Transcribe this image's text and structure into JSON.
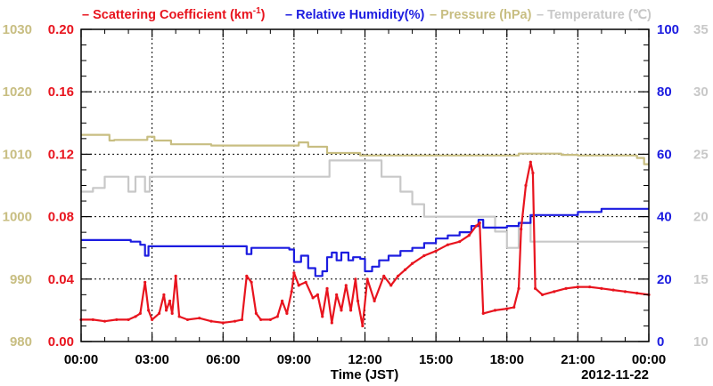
{
  "chart_data": {
    "type": "line",
    "legend": [
      {
        "key": "scattering",
        "label": "Scattering Coefficient (km",
        "sup": "-1",
        "suffix": ")",
        "color": "#e8141e"
      },
      {
        "key": "humidity",
        "label": "Relative Humidity(%)",
        "color": "#1c1ce0"
      },
      {
        "key": "pressure",
        "label": "Pressure (hPa)",
        "color": "#c8be82"
      },
      {
        "key": "temperature",
        "label": "Temperature (℃)",
        "color": "#c8c8c8"
      }
    ],
    "xlabel": "Time (JST)",
    "date_label": "2012-11-22",
    "x_ticks": [
      "00:00",
      "03:00",
      "06:00",
      "09:00",
      "12:00",
      "15:00",
      "18:00",
      "21:00",
      "00:00"
    ],
    "xlim_hours": [
      0,
      24
    ],
    "axes": {
      "scattering": {
        "range": [
          0,
          0.2
        ],
        "ticks": [
          "0.00",
          "0.04",
          "0.08",
          "0.12",
          "0.16",
          "0.20"
        ],
        "color": "#e8141e"
      },
      "pressure": {
        "range": [
          980,
          1030
        ],
        "ticks": [
          "980",
          "990",
          "1000",
          "1010",
          "1020",
          "1030"
        ],
        "color": "#c8be82"
      },
      "humidity": {
        "range": [
          0,
          100
        ],
        "ticks": [
          "0",
          "20",
          "40",
          "60",
          "80",
          "100"
        ],
        "color": "#1c1ce0"
      },
      "temperature": {
        "range": [
          10,
          35
        ],
        "ticks": [
          "10",
          "15",
          "20",
          "25",
          "30",
          "35"
        ],
        "color": "#c8c8c8"
      }
    },
    "grid": true,
    "series": [
      {
        "name": "Scattering Coefficient (km-1)",
        "axis": "scattering",
        "color": "#e8141e",
        "step": false,
        "markers": true,
        "points": [
          [
            0.0,
            0.014
          ],
          [
            0.5,
            0.014
          ],
          [
            1.0,
            0.013
          ],
          [
            1.5,
            0.014
          ],
          [
            2.0,
            0.014
          ],
          [
            2.3,
            0.016
          ],
          [
            2.5,
            0.018
          ],
          [
            2.7,
            0.038
          ],
          [
            2.85,
            0.02
          ],
          [
            3.0,
            0.014
          ],
          [
            3.3,
            0.018
          ],
          [
            3.5,
            0.03
          ],
          [
            3.6,
            0.02
          ],
          [
            3.75,
            0.026
          ],
          [
            3.85,
            0.018
          ],
          [
            4.0,
            0.042
          ],
          [
            4.15,
            0.016
          ],
          [
            4.5,
            0.014
          ],
          [
            5.0,
            0.015
          ],
          [
            5.5,
            0.013
          ],
          [
            6.0,
            0.012
          ],
          [
            6.5,
            0.013
          ],
          [
            6.8,
            0.014
          ],
          [
            7.0,
            0.042
          ],
          [
            7.2,
            0.038
          ],
          [
            7.4,
            0.018
          ],
          [
            7.6,
            0.014
          ],
          [
            8.0,
            0.014
          ],
          [
            8.3,
            0.016
          ],
          [
            8.5,
            0.026
          ],
          [
            8.7,
            0.018
          ],
          [
            8.9,
            0.032
          ],
          [
            9.0,
            0.044
          ],
          [
            9.2,
            0.036
          ],
          [
            9.5,
            0.038
          ],
          [
            9.8,
            0.028
          ],
          [
            10.0,
            0.03
          ],
          [
            10.2,
            0.016
          ],
          [
            10.4,
            0.034
          ],
          [
            10.6,
            0.012
          ],
          [
            10.8,
            0.03
          ],
          [
            11.0,
            0.02
          ],
          [
            11.2,
            0.036
          ],
          [
            11.4,
            0.02
          ],
          [
            11.6,
            0.04
          ],
          [
            11.7,
            0.026
          ],
          [
            11.9,
            0.01
          ],
          [
            12.1,
            0.04
          ],
          [
            12.4,
            0.026
          ],
          [
            12.8,
            0.042
          ],
          [
            13.1,
            0.036
          ],
          [
            13.4,
            0.042
          ],
          [
            13.7,
            0.046
          ],
          [
            14.0,
            0.05
          ],
          [
            14.5,
            0.055
          ],
          [
            15.0,
            0.058
          ],
          [
            15.5,
            0.062
          ],
          [
            16.0,
            0.064
          ],
          [
            16.4,
            0.068
          ],
          [
            16.7,
            0.074
          ],
          [
            16.85,
            0.076
          ],
          [
            17.0,
            0.018
          ],
          [
            17.5,
            0.02
          ],
          [
            18.0,
            0.021
          ],
          [
            18.3,
            0.022
          ],
          [
            18.5,
            0.034
          ],
          [
            18.6,
            0.072
          ],
          [
            18.8,
            0.1
          ],
          [
            19.0,
            0.115
          ],
          [
            19.1,
            0.108
          ],
          [
            19.2,
            0.034
          ],
          [
            19.5,
            0.03
          ],
          [
            20.0,
            0.032
          ],
          [
            20.5,
            0.034
          ],
          [
            21.0,
            0.035
          ],
          [
            21.5,
            0.035
          ],
          [
            22.0,
            0.034
          ],
          [
            22.5,
            0.033
          ],
          [
            23.0,
            0.032
          ],
          [
            23.5,
            0.031
          ],
          [
            24.0,
            0.03
          ]
        ]
      },
      {
        "name": "Relative Humidity(%)",
        "axis": "humidity",
        "color": "#1c1ce0",
        "step": true,
        "markers": false,
        "points": [
          [
            0.0,
            32.5
          ],
          [
            2.1,
            32.0
          ],
          [
            2.5,
            31.0
          ],
          [
            2.7,
            27.5
          ],
          [
            2.85,
            30.5
          ],
          [
            4.0,
            30.5
          ],
          [
            6.0,
            30.5
          ],
          [
            6.8,
            30.5
          ],
          [
            7.0,
            28.0
          ],
          [
            7.2,
            30.0
          ],
          [
            8.0,
            30.0
          ],
          [
            8.8,
            29.5
          ],
          [
            9.0,
            25.5
          ],
          [
            9.3,
            27.5
          ],
          [
            9.6,
            23.5
          ],
          [
            9.9,
            21.0
          ],
          [
            10.2,
            22.5
          ],
          [
            10.4,
            27.0
          ],
          [
            10.6,
            28.5
          ],
          [
            10.8,
            26.0
          ],
          [
            11.0,
            28.5
          ],
          [
            11.3,
            26.0
          ],
          [
            11.5,
            27.0
          ],
          [
            11.8,
            26.5
          ],
          [
            12.0,
            22.5
          ],
          [
            12.3,
            24.0
          ],
          [
            12.6,
            26.0
          ],
          [
            13.0,
            27.5
          ],
          [
            13.5,
            29.0
          ],
          [
            14.0,
            30.0
          ],
          [
            14.5,
            31.5
          ],
          [
            15.0,
            33.0
          ],
          [
            15.5,
            34.0
          ],
          [
            16.0,
            35.0
          ],
          [
            16.5,
            37.0
          ],
          [
            16.8,
            39.0
          ],
          [
            17.0,
            36.5
          ],
          [
            17.5,
            36.5
          ],
          [
            18.0,
            37.0
          ],
          [
            18.5,
            38.0
          ],
          [
            19.0,
            40.5
          ],
          [
            20.0,
            40.5
          ],
          [
            21.0,
            41.5
          ],
          [
            22.0,
            42.5
          ],
          [
            23.0,
            42.5
          ],
          [
            24.0,
            42.5
          ]
        ]
      },
      {
        "name": "Pressure (hPa)",
        "axis": "pressure",
        "color": "#c8be82",
        "step": true,
        "markers": false,
        "points": [
          [
            0.0,
            1013.1
          ],
          [
            1.2,
            1012.2
          ],
          [
            1.4,
            1012.3
          ],
          [
            2.8,
            1012.8
          ],
          [
            3.1,
            1012.2
          ],
          [
            3.8,
            1011.6
          ],
          [
            5.5,
            1011.4
          ],
          [
            7.0,
            1011.4
          ],
          [
            8.8,
            1011.4
          ],
          [
            9.2,
            1011.9
          ],
          [
            9.6,
            1011.2
          ],
          [
            10.4,
            1010.2
          ],
          [
            11.5,
            1010.2
          ],
          [
            11.8,
            1009.8
          ],
          [
            12.5,
            1009.8
          ],
          [
            15.0,
            1009.8
          ],
          [
            17.0,
            1009.8
          ],
          [
            18.5,
            1010.1
          ],
          [
            20.3,
            1009.9
          ],
          [
            21.0,
            1009.8
          ],
          [
            22.5,
            1009.8
          ],
          [
            23.5,
            1009.4
          ],
          [
            23.8,
            1008.4
          ],
          [
            24.0,
            1008.4
          ]
        ]
      },
      {
        "name": "Temperature (℃)",
        "axis": "temperature",
        "color": "#c8c8c8",
        "step": true,
        "markers": false,
        "points": [
          [
            0.0,
            22.0
          ],
          [
            0.5,
            22.3
          ],
          [
            1.0,
            23.2
          ],
          [
            2.0,
            22.0
          ],
          [
            2.3,
            23.2
          ],
          [
            2.7,
            22.0
          ],
          [
            2.9,
            23.2
          ],
          [
            10.0,
            23.2
          ],
          [
            10.5,
            24.5
          ],
          [
            12.5,
            24.5
          ],
          [
            12.7,
            23.2
          ],
          [
            13.5,
            22.0
          ],
          [
            14.0,
            21.0
          ],
          [
            14.5,
            20.0
          ],
          [
            16.0,
            20.0
          ],
          [
            16.8,
            20.0
          ],
          [
            17.5,
            18.8
          ],
          [
            18.0,
            17.5
          ],
          [
            18.5,
            19.5
          ],
          [
            19.0,
            18.0
          ],
          [
            20.0,
            18.0
          ],
          [
            24.0,
            18.0
          ]
        ]
      }
    ]
  }
}
